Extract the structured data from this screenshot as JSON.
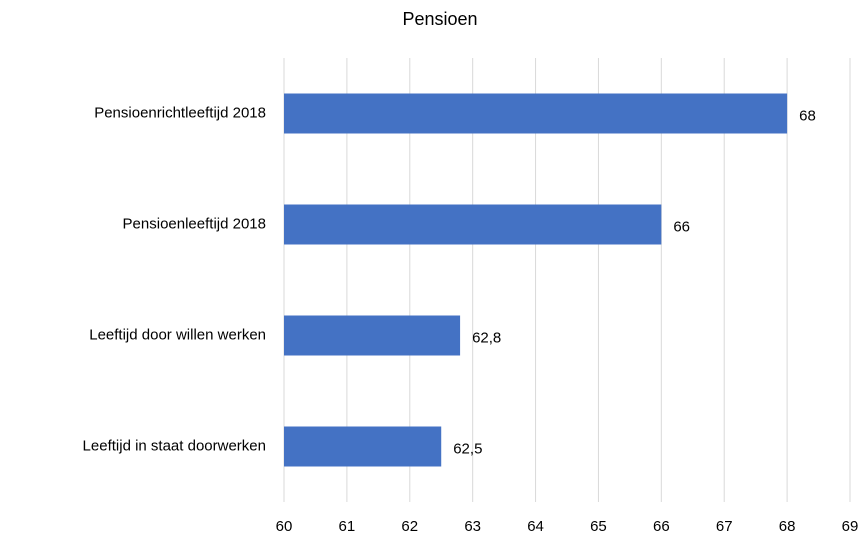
{
  "chart_data": {
    "type": "hbar",
    "title": "Pensioen",
    "categories": [
      "Pensioenrichtleeftijd 2018",
      "Pensioenleeftijd 2018",
      "Leeftijd door willen werken",
      "Leeftijd in staat doorwerken"
    ],
    "values": [
      68,
      66,
      62.8,
      62.5
    ],
    "value_labels": [
      "68",
      "66",
      "62,8",
      "62,5"
    ],
    "color": "#4472c4",
    "xlim": [
      60,
      69
    ],
    "xticks": [
      60,
      61,
      62,
      63,
      64,
      65,
      66,
      67,
      68,
      69
    ],
    "grid": true
  }
}
